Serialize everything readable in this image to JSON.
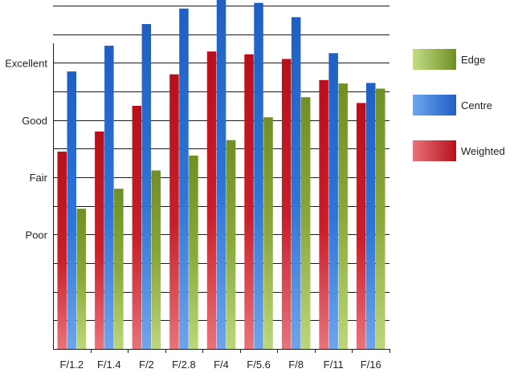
{
  "chart_data": {
    "type": "bar",
    "categories": [
      "F/1.2",
      "F/1.4",
      "F/2",
      "F/2.8",
      "F/4",
      "F/5.6",
      "F/8",
      "F/11",
      "F/16"
    ],
    "series": [
      {
        "name": "Weighted",
        "color": "#c0141c",
        "values": [
          2.45,
          2.8,
          3.25,
          3.8,
          4.2,
          4.15,
          4.07,
          3.7,
          3.3
        ]
      },
      {
        "name": "Centre",
        "color": "#2a6dd0",
        "values": [
          3.85,
          4.3,
          4.68,
          4.95,
          5.2,
          5.05,
          4.8,
          4.17,
          3.65
        ]
      },
      {
        "name": "Edge",
        "color": "#7a9a2e",
        "values": [
          1.45,
          1.8,
          2.12,
          2.38,
          2.65,
          3.05,
          3.4,
          3.64,
          3.55
        ]
      }
    ],
    "ytick_values": [
      1,
      2,
      3,
      4
    ],
    "ytick_labels": [
      "Poor",
      "Fair",
      "Good",
      "Excellent"
    ],
    "ylim": [
      -1,
      5.1
    ],
    "grid": true,
    "legend": {
      "position": "right",
      "order": [
        "Edge",
        "Centre",
        "Weighted"
      ]
    }
  }
}
